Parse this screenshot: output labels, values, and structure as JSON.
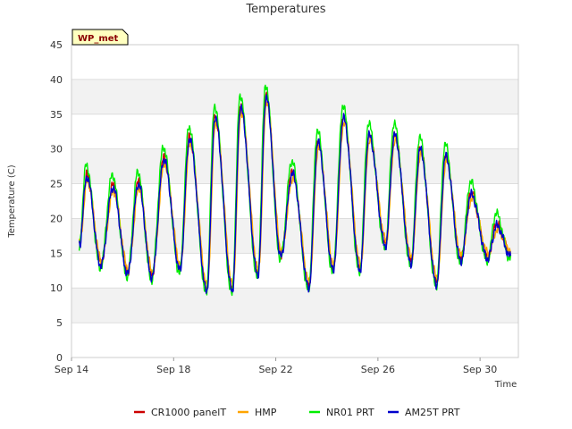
{
  "chart_data": {
    "type": "line",
    "title": "Temperatures",
    "xlabel": "Time",
    "ylabel": "Temperature (C)",
    "badge": "WP_met",
    "ylim": [
      0,
      45
    ],
    "yticks": [
      0,
      5,
      10,
      15,
      20,
      25,
      30,
      35,
      40,
      45
    ],
    "xlim_days": [
      14,
      31.5
    ],
    "xticks": [
      {
        "day": 14,
        "label": "Sep 14"
      },
      {
        "day": 18,
        "label": "Sep 18"
      },
      {
        "day": 22,
        "label": "Sep 22"
      },
      {
        "day": 26,
        "label": "Sep 26"
      },
      {
        "day": 30,
        "label": "Sep 30"
      }
    ],
    "colors": {
      "plot_band": "#f2f2f2",
      "grid": "#dddddd",
      "axis": "#cccccc",
      "badge_fill": "#ffffc0",
      "badge_text": "#8b0000"
    },
    "daily_extrema": [
      {
        "t": 14.3,
        "min": 15.8,
        "max": 16.5
      },
      {
        "t": 14.6,
        "min": 16.0,
        "max": 26.0
      },
      {
        "t": 15.15,
        "min": 13.2,
        "max": 14.0
      },
      {
        "t": 15.62,
        "min": 14.0,
        "max": 24.5
      },
      {
        "t": 16.2,
        "min": 12.0,
        "max": 13.0
      },
      {
        "t": 16.62,
        "min": 12.5,
        "max": 25.0
      },
      {
        "t": 17.15,
        "min": 11.5,
        "max": 17.0
      },
      {
        "t": 17.62,
        "min": 15.0,
        "max": 28.5
      },
      {
        "t": 18.25,
        "min": 12.5,
        "max": 13.5
      },
      {
        "t": 18.62,
        "min": 13.0,
        "max": 31.5
      },
      {
        "t": 19.3,
        "min": 9.5,
        "max": 10.5
      },
      {
        "t": 19.62,
        "min": 10.0,
        "max": 34.5
      },
      {
        "t": 20.3,
        "min": 9.5,
        "max": 15.5
      },
      {
        "t": 20.62,
        "min": 15.0,
        "max": 36.0
      },
      {
        "t": 21.3,
        "min": 11.8,
        "max": 12.5
      },
      {
        "t": 21.62,
        "min": 12.0,
        "max": 37.5
      },
      {
        "t": 22.2,
        "min": 14.5,
        "max": 15.5
      },
      {
        "t": 22.65,
        "min": 15.0,
        "max": 26.5
      },
      {
        "t": 23.3,
        "min": 10.0,
        "max": 11.0
      },
      {
        "t": 23.65,
        "min": 10.5,
        "max": 31.0
      },
      {
        "t": 24.25,
        "min": 12.5,
        "max": 16.5
      },
      {
        "t": 24.65,
        "min": 13.0,
        "max": 34.5
      },
      {
        "t": 25.3,
        "min": 12.5,
        "max": 17.0
      },
      {
        "t": 25.65,
        "min": 13.5,
        "max": 32.0
      },
      {
        "t": 26.3,
        "min": 16.0,
        "max": 17.0
      },
      {
        "t": 26.65,
        "min": 16.5,
        "max": 32.0
      },
      {
        "t": 27.3,
        "min": 13.5,
        "max": 15.0
      },
      {
        "t": 27.65,
        "min": 14.0,
        "max": 30.0
      },
      {
        "t": 28.3,
        "min": 10.5,
        "max": 12.0
      },
      {
        "t": 28.65,
        "min": 11.0,
        "max": 29.0
      },
      {
        "t": 29.25,
        "min": 13.8,
        "max": 14.5
      },
      {
        "t": 29.65,
        "min": 14.0,
        "max": 23.5
      },
      {
        "t": 30.3,
        "min": 14.2,
        "max": 15.5
      },
      {
        "t": 30.65,
        "min": 15.0,
        "max": 19.0
      },
      {
        "t": 31.2,
        "min": 14.5,
        "max": 15.0
      }
    ],
    "series": [
      {
        "name": "CR1000 panelT",
        "color": "#cc0000",
        "peak_offset": 0.3,
        "trough_offset": 0.3,
        "dt": 0.0
      },
      {
        "name": "HMP",
        "color": "#ffa500",
        "peak_offset": -0.6,
        "trough_offset": 0.8,
        "dt": 0.02
      },
      {
        "name": "NR01 PRT",
        "color": "#00ee00",
        "peak_offset": 1.8,
        "trough_offset": -0.4,
        "dt": -0.02
      },
      {
        "name": "AM25T PRT",
        "color": "#0000cc",
        "peak_offset": 0.0,
        "trough_offset": 0.0,
        "dt": 0.0
      }
    ]
  }
}
